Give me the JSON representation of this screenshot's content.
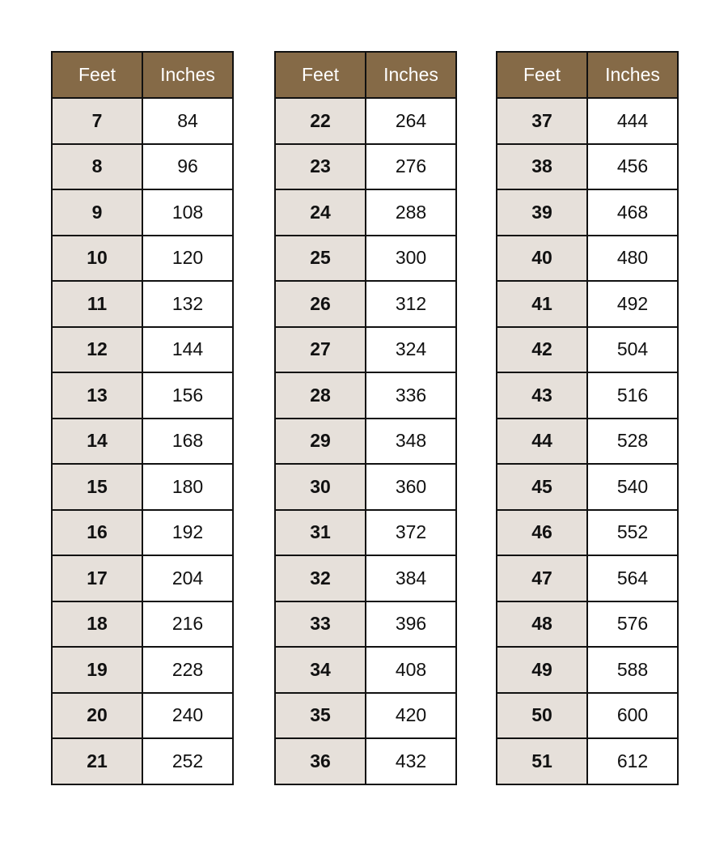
{
  "colors": {
    "header_bg": "#856A47",
    "feet_bg": "#E6E0DA"
  },
  "tables": [
    {
      "headers": [
        "Feet",
        "Inches"
      ],
      "rows": [
        [
          "7",
          "84"
        ],
        [
          "8",
          "96"
        ],
        [
          "9",
          "108"
        ],
        [
          "10",
          "120"
        ],
        [
          "11",
          "132"
        ],
        [
          "12",
          "144"
        ],
        [
          "13",
          "156"
        ],
        [
          "14",
          "168"
        ],
        [
          "15",
          "180"
        ],
        [
          "16",
          "192"
        ],
        [
          "17",
          "204"
        ],
        [
          "18",
          "216"
        ],
        [
          "19",
          "228"
        ],
        [
          "20",
          "240"
        ],
        [
          "21",
          "252"
        ]
      ]
    },
    {
      "headers": [
        "Feet",
        "Inches"
      ],
      "rows": [
        [
          "22",
          "264"
        ],
        [
          "23",
          "276"
        ],
        [
          "24",
          "288"
        ],
        [
          "25",
          "300"
        ],
        [
          "26",
          "312"
        ],
        [
          "27",
          "324"
        ],
        [
          "28",
          "336"
        ],
        [
          "29",
          "348"
        ],
        [
          "30",
          "360"
        ],
        [
          "31",
          "372"
        ],
        [
          "32",
          "384"
        ],
        [
          "33",
          "396"
        ],
        [
          "34",
          "408"
        ],
        [
          "35",
          "420"
        ],
        [
          "36",
          "432"
        ]
      ]
    },
    {
      "headers": [
        "Feet",
        "Inches"
      ],
      "rows": [
        [
          "37",
          "444"
        ],
        [
          "38",
          "456"
        ],
        [
          "39",
          "468"
        ],
        [
          "40",
          "480"
        ],
        [
          "41",
          "492"
        ],
        [
          "42",
          "504"
        ],
        [
          "43",
          "516"
        ],
        [
          "44",
          "528"
        ],
        [
          "45",
          "540"
        ],
        [
          "46",
          "552"
        ],
        [
          "47",
          "564"
        ],
        [
          "48",
          "576"
        ],
        [
          "49",
          "588"
        ],
        [
          "50",
          "600"
        ],
        [
          "51",
          "612"
        ]
      ]
    }
  ]
}
